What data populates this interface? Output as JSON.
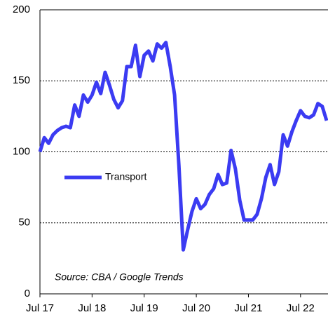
{
  "chart_data": {
    "type": "line",
    "x": [
      "2017-07",
      "2017-08",
      "2017-09",
      "2017-10",
      "2017-11",
      "2017-12",
      "2018-01",
      "2018-02",
      "2018-03",
      "2018-04",
      "2018-05",
      "2018-06",
      "2018-07",
      "2018-08",
      "2018-09",
      "2018-10",
      "2018-11",
      "2018-12",
      "2019-01",
      "2019-02",
      "2019-03",
      "2019-04",
      "2019-05",
      "2019-06",
      "2019-07",
      "2019-08",
      "2019-09",
      "2019-10",
      "2019-11",
      "2019-12",
      "2020-01",
      "2020-02",
      "2020-03",
      "2020-04",
      "2020-05",
      "2020-06",
      "2020-07",
      "2020-08",
      "2020-09",
      "2020-10",
      "2020-11",
      "2020-12",
      "2021-01",
      "2021-02",
      "2021-03",
      "2021-04",
      "2021-05",
      "2021-06",
      "2021-07",
      "2021-08",
      "2021-09",
      "2021-10",
      "2021-11",
      "2021-12",
      "2022-01",
      "2022-02",
      "2022-03",
      "2022-04",
      "2022-05",
      "2022-06",
      "2022-07",
      "2022-08",
      "2022-09",
      "2022-10",
      "2022-11",
      "2022-12",
      "2023-01"
    ],
    "series": [
      {
        "name": "Transport",
        "color": "#3b3bf2",
        "values": [
          100,
          110,
          106,
          112,
          115,
          117,
          118,
          117,
          133,
          125,
          140,
          135,
          140,
          149,
          141,
          156,
          147,
          137,
          131,
          136,
          160,
          160,
          175,
          153,
          168,
          171,
          164,
          176,
          173,
          177,
          160,
          140,
          90,
          31,
          45,
          58,
          67,
          60,
          63,
          70,
          74,
          84,
          77,
          78,
          101,
          88,
          66,
          52,
          52,
          52,
          56,
          67,
          82,
          91,
          77,
          86,
          112,
          104,
          114,
          122,
          129,
          125,
          124,
          126,
          134,
          132,
          122
        ]
      }
    ],
    "xlim": [
      "2017-07",
      "2023-01"
    ],
    "xticks": [
      {
        "value": "2017-07",
        "label": "Jul 17"
      },
      {
        "value": "2018-07",
        "label": "Jul 18"
      },
      {
        "value": "2019-07",
        "label": "Jul 19"
      },
      {
        "value": "2020-07",
        "label": "Jul 20"
      },
      {
        "value": "2021-07",
        "label": "Jul 21"
      },
      {
        "value": "2022-07",
        "label": "Jul 22"
      }
    ],
    "ylim": [
      0,
      200
    ],
    "yticks": [
      0,
      50,
      100,
      150,
      200
    ],
    "grid": true,
    "annotation": "Source: CBA / Google Trends"
  }
}
